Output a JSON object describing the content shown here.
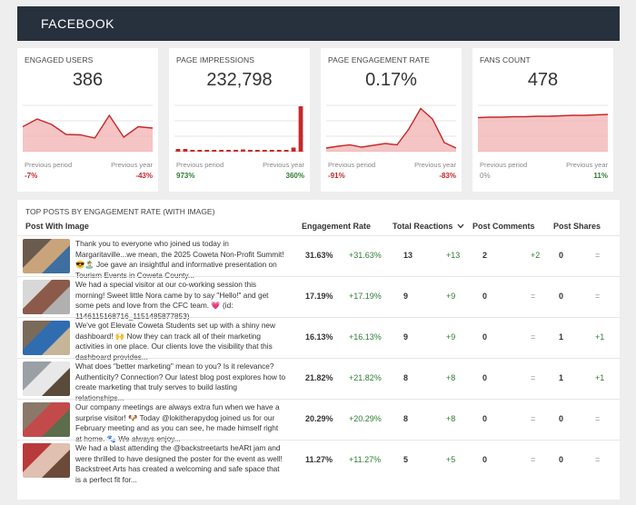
{
  "header": {
    "title": "FACEBOOK"
  },
  "cards": [
    {
      "title": "ENGAGED USERS",
      "value": "386",
      "previous_period_label": "Previous period",
      "previous_period_value": "-7%",
      "previous_period_status": "negative",
      "previous_year_label": "Previous year",
      "previous_year_value": "-43%",
      "previous_year_status": "negative",
      "chart_type": "area",
      "series": [
        0.55,
        0.72,
        0.6,
        0.38,
        0.37,
        0.3,
        0.8,
        0.32,
        0.55,
        0.52
      ]
    },
    {
      "title": "PAGE IMPRESSIONS",
      "value": "232,798",
      "previous_period_label": "Previous period",
      "previous_period_value": "973%",
      "previous_period_status": "positive",
      "previous_year_label": "Previous year",
      "previous_year_value": "360%",
      "previous_year_status": "positive",
      "chart_type": "bar",
      "series": [
        0.06,
        0.06,
        0.04,
        0.03,
        0.03,
        0.03,
        0.03,
        0.03,
        0.03,
        0.05,
        0.04,
        0.03,
        0.03,
        0.03,
        0.03,
        0.03,
        0.09,
        1.0
      ]
    },
    {
      "title": "PAGE ENGAGEMENT RATE",
      "value": "0.17%",
      "previous_period_label": "Previous period",
      "previous_period_value": "-91%",
      "previous_period_status": "negative",
      "previous_year_label": "Previous year",
      "previous_year_value": "-83%",
      "previous_year_status": "negative",
      "chart_type": "area",
      "series": [
        0.08,
        0.12,
        0.15,
        0.1,
        0.14,
        0.18,
        0.15,
        0.5,
        0.95,
        0.72,
        0.2,
        0.08
      ]
    },
    {
      "title": "FANS COUNT",
      "value": "478",
      "previous_period_label": "Previous period",
      "previous_period_value": "0%",
      "previous_period_status": "neutral",
      "previous_year_label": "Previous year",
      "previous_year_value": "11%",
      "previous_year_status": "positive",
      "chart_type": "area",
      "series": [
        0.75,
        0.76,
        0.76,
        0.77,
        0.77,
        0.78,
        0.78,
        0.79,
        0.8,
        0.8,
        0.81,
        0.82
      ]
    }
  ],
  "table": {
    "title": "TOP POSTS BY ENGAGEMENT RATE (WITH IMAGE)",
    "headers": {
      "post": "Post With Image",
      "engagement_rate": "Engagement Rate",
      "total_reactions": "Total Reactions",
      "post_comments": "Post Comments",
      "post_shares": "Post Shares"
    },
    "rows": [
      {
        "text": "Thank you to everyone who joined us today in Margaritaville...we mean, the 2025 Coweta Non-Profit Summit! 😎🏝️ Joe gave an insightful and informative presentation on Tourism Events in Coweta County...",
        "rate": "31.63%",
        "rate_change": "+31.63%",
        "reactions": "13",
        "reactions_change": "+13",
        "comments": "2",
        "comments_change": "+2",
        "shares": "0",
        "shares_change": "=",
        "thumb_colors": [
          "#6b5b4e",
          "#c9a47a",
          "#3f6fa0"
        ]
      },
      {
        "text": "We had a special visitor at our co-working session this morning! Sweet little Nora came by to say \"Hello!\" and get some pets and love from the CFC team. 💗 (id: 1146115168716_1151485877853)",
        "rate": "17.19%",
        "rate_change": "+17.19%",
        "reactions": "9",
        "reactions_change": "+9",
        "comments": "0",
        "comments_change": "=",
        "shares": "0",
        "shares_change": "=",
        "thumb_colors": [
          "#d8d8d8",
          "#8c5a4a",
          "#b0b0b0"
        ]
      },
      {
        "text": "We've got Elevate Coweta Students set up with a shiny new dashboard! 🙌 Now they can track all of their marketing activities in one place. Our clients love the visibility that this dashboard provides...",
        "rate": "16.13%",
        "rate_change": "+16.13%",
        "reactions": "9",
        "reactions_change": "+9",
        "comments": "0",
        "comments_change": "=",
        "shares": "1",
        "shares_change": "+1",
        "thumb_colors": [
          "#7a6a5a",
          "#2f6db0",
          "#c7b59a"
        ]
      },
      {
        "text": "What does \"better marketing\" mean to you? Is it relevance? Authenticity? Connection? Our latest blog post explores how to create marketing that truly serves to build lasting relationships...",
        "rate": "21.82%",
        "rate_change": "+21.82%",
        "reactions": "8",
        "reactions_change": "+8",
        "comments": "0",
        "comments_change": "=",
        "shares": "1",
        "shares_change": "+1",
        "thumb_colors": [
          "#9aa0a6",
          "#e8e8e8",
          "#5a4a3a"
        ]
      },
      {
        "text": "Our company meetings are always extra fun when we have a surprise visitor! 🐶 Today @lokitherapydog joined us for our February meeting and as you can see, he made himself right at home. 🐾 We always enjoy...",
        "rate": "20.29%",
        "rate_change": "+20.29%",
        "reactions": "8",
        "reactions_change": "+8",
        "comments": "0",
        "comments_change": "=",
        "shares": "0",
        "shares_change": "=",
        "thumb_colors": [
          "#8a7868",
          "#c34a4a",
          "#5b6d4a"
        ]
      },
      {
        "text": "We had a blast attending the @backstreetarts heARt jam and were thrilled to have designed the poster for the event as well! Backstreet Arts has created a welcoming and safe space that is a perfect fit for...",
        "rate": "11.27%",
        "rate_change": "+11.27%",
        "reactions": "5",
        "reactions_change": "+5",
        "comments": "0",
        "comments_change": "=",
        "shares": "0",
        "shares_change": "=",
        "thumb_colors": [
          "#b83a3a",
          "#e0c0b0",
          "#6b4a3a"
        ]
      }
    ]
  }
}
